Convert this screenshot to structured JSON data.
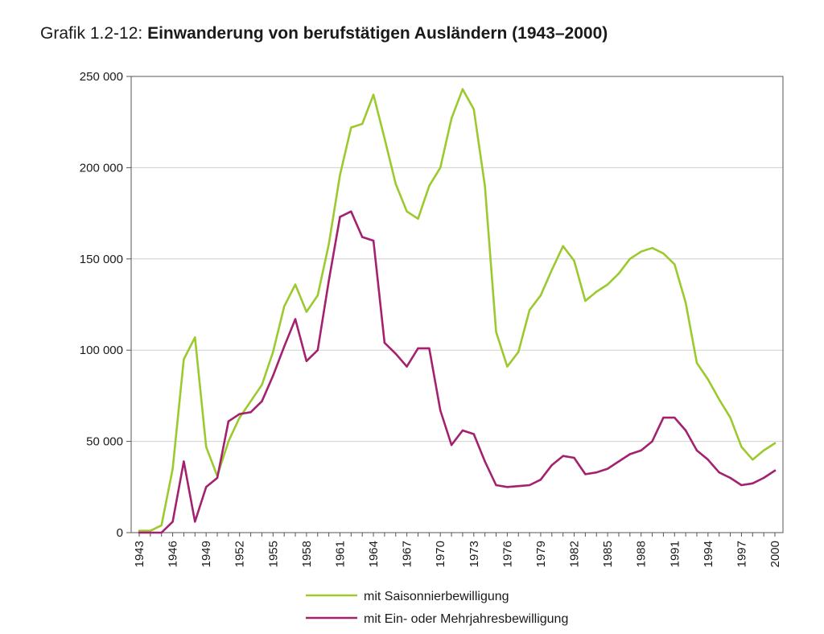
{
  "title_prefix": "Grafik 1.2-12: ",
  "title_main": "Einwanderung von berufstätigen Ausländern (1943–2000)",
  "colors": {
    "seasonal": "#9cc92e",
    "annual": "#a3216e",
    "grid": "#cfcfcf",
    "axis": "#555555"
  },
  "chart_data": {
    "type": "line",
    "title": "Einwanderung von berufstätigen Ausländern (1943–2000)",
    "xlabel": "",
    "ylabel": "",
    "xlim": [
      1943,
      2000
    ],
    "ylim": [
      0,
      250000
    ],
    "grid": true,
    "legend_position": "bottom",
    "x_ticks": [
      1943,
      1946,
      1949,
      1952,
      1955,
      1958,
      1961,
      1964,
      1967,
      1970,
      1973,
      1976,
      1979,
      1982,
      1985,
      1988,
      1991,
      1994,
      1997,
      2000
    ],
    "y_ticks": [
      0,
      50000,
      100000,
      150000,
      200000,
      250000
    ],
    "y_tick_labels": [
      "0",
      "50 000",
      "100 000",
      "150 000",
      "200 000",
      "250 000"
    ],
    "x": [
      1943,
      1944,
      1945,
      1946,
      1947,
      1948,
      1949,
      1950,
      1951,
      1952,
      1953,
      1954,
      1955,
      1956,
      1957,
      1958,
      1959,
      1960,
      1961,
      1962,
      1963,
      1964,
      1965,
      1966,
      1967,
      1968,
      1969,
      1970,
      1971,
      1972,
      1973,
      1974,
      1975,
      1976,
      1977,
      1978,
      1979,
      1980,
      1981,
      1982,
      1983,
      1984,
      1985,
      1986,
      1987,
      1988,
      1989,
      1990,
      1991,
      1992,
      1993,
      1994,
      1995,
      1996,
      1997,
      1998,
      1999,
      2000
    ],
    "series": [
      {
        "name": "mit Saisonnierbewilligung",
        "color": "#9cc92e",
        "values": [
          1000,
          1000,
          4000,
          35000,
          95000,
          107000,
          47000,
          31000,
          50000,
          63000,
          72000,
          81000,
          99000,
          124000,
          136000,
          121000,
          130000,
          158000,
          196000,
          222000,
          224000,
          240000,
          216000,
          191000,
          176000,
          172000,
          190000,
          200000,
          227000,
          243000,
          232000,
          190000,
          110000,
          91000,
          99000,
          122000,
          130000,
          144000,
          157000,
          149000,
          127000,
          132000,
          136000,
          142000,
          150000,
          154000,
          156000,
          153000,
          147000,
          126000,
          93000,
          84000,
          73000,
          63000,
          47000,
          40000,
          45000,
          49000
        ]
      },
      {
        "name": "mit Ein- oder Mehrjahresbewilligung",
        "color": "#a3216e",
        "values": [
          0,
          0,
          0,
          6000,
          39000,
          6000,
          25000,
          30000,
          61000,
          65000,
          66000,
          72000,
          86000,
          102000,
          117000,
          94000,
          100000,
          138000,
          173000,
          176000,
          162000,
          160000,
          104000,
          98000,
          91000,
          101000,
          101000,
          67000,
          48000,
          56000,
          54000,
          39000,
          26000,
          25000,
          25500,
          26000,
          29000,
          37000,
          42000,
          41000,
          32000,
          33000,
          35000,
          39000,
          43000,
          45000,
          50000,
          63000,
          63000,
          56000,
          45000,
          40000,
          33000,
          30000,
          26000,
          27000,
          30000,
          34000
        ]
      }
    ]
  }
}
